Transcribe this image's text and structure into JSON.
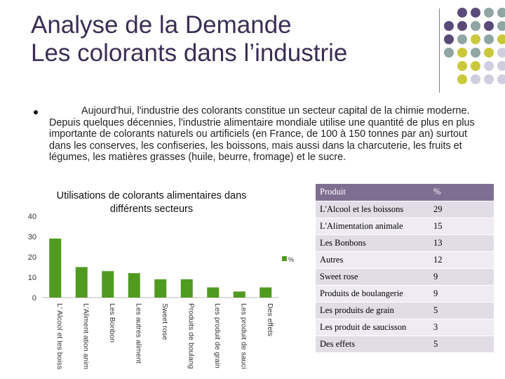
{
  "title": {
    "line1": "Analyse de la Demande",
    "line2": "Les colorants dans l’industrie"
  },
  "bullet": {
    "text": "Aujourd'hui, l'industrie des colorants constitue un secteur capital de la chimie moderne. Depuis quelques décennies, l'industrie alimentaire mondiale utilise une quantité de plus en plus importante de colorants naturels ou artificiels (en France, de 100 à 150 tonnes par an) surtout dans les conserves, les confiseries, les boissons, mais aussi dans la charcuterie, les fruits et légumes, les matières grasses (huile, beurre, fromage) et le sucre."
  },
  "colors": {
    "title": "#3a2e56",
    "purple": "#5a4a7a",
    "sage": "#8fa6a3",
    "olive": "#c9c83a",
    "lavender": "#d0cde0",
    "bar": "#4f9a1f",
    "table_head": "#7e6f92"
  },
  "chart_data": {
    "type": "bar",
    "title_line1": "Utilisations de colorants alimentaires dans",
    "title_line2": "différents secteurs",
    "categories": [
      "L' Alcool et les boisson",
      "L'Aliment ation animal",
      "Les Bonbon",
      "Les autres aliment",
      "Sweet rose",
      "Produits de boulangerie",
      "Les produit de grain",
      "Les produit de saucisson",
      "Des effets"
    ],
    "values": [
      29,
      15,
      13,
      12,
      9,
      9,
      5,
      3,
      5
    ],
    "yticks": [
      0,
      10,
      20,
      30,
      40
    ],
    "ylim": [
      0,
      40
    ],
    "legend": "%"
  },
  "table": {
    "headers": [
      "Produit",
      "%"
    ],
    "rows": [
      [
        "L'Alcool et les boissons",
        "29"
      ],
      [
        "L'Alimentation animale",
        "15"
      ],
      [
        "Les Bonbons",
        "13"
      ],
      [
        "Autres",
        "12"
      ],
      [
        "Sweet rose",
        "9"
      ],
      [
        "Produits de boulangerie",
        "9"
      ],
      [
        "Les produits de grain",
        "5"
      ],
      [
        "Les produit de saucisson",
        "3"
      ],
      [
        "Des effets",
        "5"
      ]
    ]
  }
}
